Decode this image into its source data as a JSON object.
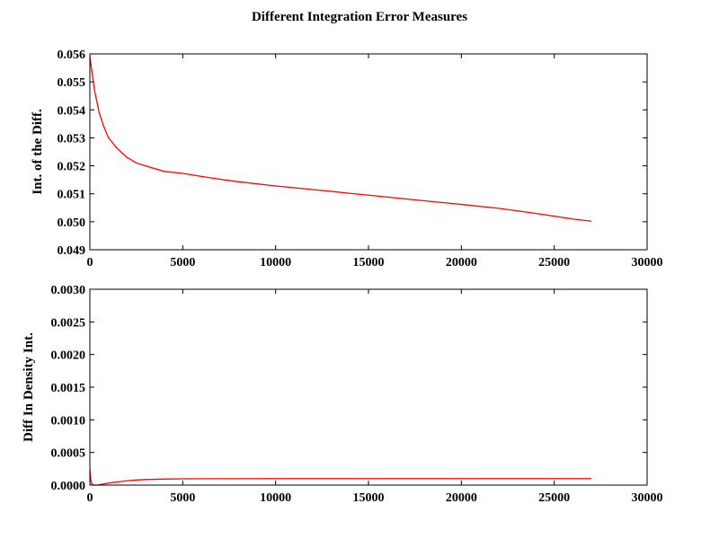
{
  "figure": {
    "title": "Different Integration Error Measures"
  },
  "chart_data": [
    {
      "type": "line",
      "title": "",
      "xlabel": "",
      "ylabel": "Int. of the Diff.",
      "xlim": [
        0,
        30000
      ],
      "ylim": [
        0.049,
        0.056
      ],
      "x_ticks": [
        0,
        5000,
        10000,
        15000,
        20000,
        25000,
        30000
      ],
      "y_ticks": [
        0.049,
        0.05,
        0.051,
        0.052,
        0.053,
        0.054,
        0.055,
        0.056
      ],
      "x_tick_labels": [
        "0",
        "5000",
        "10000",
        "15000",
        "20000",
        "25000",
        "30000"
      ],
      "y_tick_labels": [
        "0.049",
        "0.050",
        "0.051",
        "0.052",
        "0.053",
        "0.054",
        "0.055",
        "0.056"
      ],
      "grid": false,
      "color": "#ff0000",
      "x": [
        0,
        100,
        250,
        500,
        750,
        1000,
        1500,
        2000,
        2500,
        3000,
        4000,
        5000,
        6000,
        7000,
        8000,
        10000,
        12000,
        15000,
        18000,
        20000,
        22000,
        24000,
        25000,
        26000,
        27000
      ],
      "y": [
        0.0559,
        0.0554,
        0.0547,
        0.0539,
        0.0534,
        0.053,
        0.0526,
        0.0523,
        0.0521,
        0.052,
        0.0518,
        0.05173,
        0.05162,
        0.05152,
        0.05143,
        0.05128,
        0.05115,
        0.05095,
        0.05075,
        0.05062,
        0.05048,
        0.0503,
        0.0502,
        0.0501,
        0.05002
      ]
    },
    {
      "type": "line",
      "title": "",
      "xlabel": "",
      "ylabel": "Diff In Density Int.",
      "xlim": [
        0,
        30000
      ],
      "ylim": [
        0.0,
        0.003
      ],
      "x_ticks": [
        0,
        5000,
        10000,
        15000,
        20000,
        25000,
        30000
      ],
      "y_ticks": [
        0.0,
        0.0005,
        0.001,
        0.0015,
        0.002,
        0.0025,
        0.003
      ],
      "x_tick_labels": [
        "0",
        "5000",
        "10000",
        "15000",
        "20000",
        "25000",
        "30000"
      ],
      "y_tick_labels": [
        "0.0000",
        "0.0005",
        "0.0010",
        "0.0015",
        "0.0020",
        "0.0025",
        "0.0030"
      ],
      "grid": false,
      "color": "#ff0000",
      "x": [
        0,
        50,
        100,
        200,
        400,
        700,
        1000,
        1500,
        2000,
        2500,
        3000,
        4000,
        5000,
        7000,
        10000,
        15000,
        20000,
        25000,
        27000
      ],
      "y": [
        0.00024,
        8e-05,
        2e-05,
        0.0,
        0.0,
        1.5e-05,
        3e-05,
        5e-05,
        6.5e-05,
        7.8e-05,
        8.5e-05,
        9.2e-05,
        9.6e-05,
        9.8e-05,
        0.0001,
        0.0001,
        0.0001,
        0.0001,
        0.0001
      ]
    }
  ]
}
